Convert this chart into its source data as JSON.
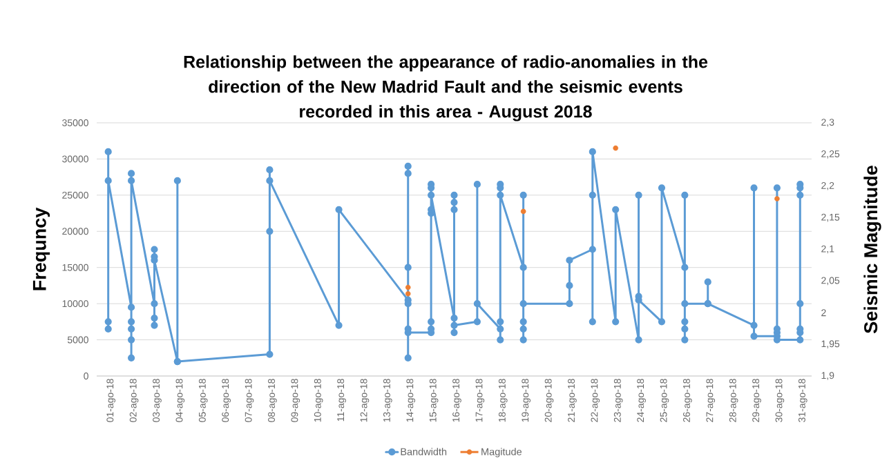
{
  "chart_data": {
    "type": "line",
    "title": "Relationship between the appearance of radio-anomalies in the direction of the New Madrid Fault and the seismic events recorded in this area - August 2018",
    "ylabel": "Frequncy",
    "y2label": "Seismic Magnitude",
    "series": [
      {
        "name": "Bandwidth",
        "color": "#5b9bd5",
        "x": [
          "2018-08-01",
          "2018-08-01",
          "2018-08-01",
          "2018-08-01",
          "2018-08-02",
          "2018-08-02",
          "2018-08-02",
          "2018-08-02",
          "2018-08-02",
          "2018-08-02",
          "2018-08-02",
          "2018-08-03",
          "2018-08-03",
          "2018-08-03",
          "2018-08-03",
          "2018-08-03",
          "2018-08-03",
          "2018-08-04",
          "2018-08-04",
          "2018-08-04",
          "2018-08-08",
          "2018-08-08",
          "2018-08-08",
          "2018-08-08",
          "2018-08-11",
          "2018-08-11",
          "2018-08-14",
          "2018-08-14",
          "2018-08-14",
          "2018-08-14",
          "2018-08-14",
          "2018-08-14",
          "2018-08-14",
          "2018-08-14",
          "2018-08-15",
          "2018-08-15",
          "2018-08-15",
          "2018-08-15",
          "2018-08-15",
          "2018-08-15",
          "2018-08-15",
          "2018-08-15",
          "2018-08-16",
          "2018-08-16",
          "2018-08-16",
          "2018-08-16",
          "2018-08-16",
          "2018-08-16",
          "2018-08-17",
          "2018-08-17",
          "2018-08-17",
          "2018-08-18",
          "2018-08-18",
          "2018-08-18",
          "2018-08-18",
          "2018-08-18",
          "2018-08-18",
          "2018-08-19",
          "2018-08-19",
          "2018-08-19",
          "2018-08-19",
          "2018-08-19",
          "2018-08-19",
          "2018-08-21",
          "2018-08-21",
          "2018-08-21",
          "2018-08-22",
          "2018-08-22",
          "2018-08-22",
          "2018-08-22",
          "2018-08-23",
          "2018-08-23",
          "2018-08-24",
          "2018-08-24",
          "2018-08-24",
          "2018-08-24",
          "2018-08-25",
          "2018-08-25",
          "2018-08-26",
          "2018-08-26",
          "2018-08-26",
          "2018-08-26",
          "2018-08-26",
          "2018-08-26",
          "2018-08-27",
          "2018-08-27",
          "2018-08-27",
          "2018-08-29",
          "2018-08-29",
          "2018-08-29",
          "2018-08-30",
          "2018-08-30",
          "2018-08-30",
          "2018-08-30",
          "2018-08-30",
          "2018-08-31",
          "2018-08-31",
          "2018-08-31",
          "2018-08-31",
          "2018-08-31",
          "2018-08-31",
          "2018-08-31"
        ],
        "values": [
          6500,
          7500,
          31000,
          27000,
          9500,
          7500,
          6500,
          5000,
          2500,
          28000,
          27000,
          10000,
          8000,
          7000,
          17500,
          16500,
          16000,
          2000,
          27000,
          2000,
          3000,
          20000,
          28500,
          27000,
          7000,
          23000,
          10500,
          15000,
          29000,
          28000,
          10000,
          2500,
          6500,
          6000,
          6000,
          6500,
          7500,
          22500,
          23000,
          26500,
          26000,
          25000,
          8000,
          6000,
          23000,
          24000,
          25000,
          7000,
          7500,
          26500,
          10000,
          6500,
          5000,
          7500,
          26500,
          26000,
          25000,
          15000,
          25000,
          5000,
          6500,
          7500,
          10000,
          10000,
          12500,
          16000,
          17500,
          7500,
          25000,
          31000,
          7500,
          23000,
          5000,
          25000,
          11000,
          10500,
          7500,
          26000,
          15000,
          25000,
          5000,
          6500,
          7500,
          10000,
          10000,
          13000,
          10000,
          7000,
          26000,
          5500,
          5500,
          26000,
          6500,
          6000,
          5000,
          5000,
          6000,
          6500,
          10000,
          25000,
          26000,
          26500
        ]
      },
      {
        "name": "Magitude",
        "type": "scatter",
        "axis": "y2",
        "color": "#ed7d31",
        "x": [
          "2018-08-14",
          "2018-08-14",
          "2018-08-19",
          "2018-08-23",
          "2018-08-30"
        ],
        "values": [
          2.04,
          2.03,
          2.16,
          2.26,
          2.18
        ]
      }
    ],
    "xlim": [
      "2018-07-31T12:00",
      "2018-08-31T12:00"
    ],
    "xticks": [
      {
        "value": "2018-08-01",
        "label": "01-ago-18"
      },
      {
        "value": "2018-08-02",
        "label": "02-ago-18"
      },
      {
        "value": "2018-08-03",
        "label": "03-ago-18"
      },
      {
        "value": "2018-08-04",
        "label": "04-ago-18"
      },
      {
        "value": "2018-08-05",
        "label": "05-ago-18"
      },
      {
        "value": "2018-08-06",
        "label": "06-ago-18"
      },
      {
        "value": "2018-08-07",
        "label": "07-ago-18"
      },
      {
        "value": "2018-08-08",
        "label": "08-ago-18"
      },
      {
        "value": "2018-08-09",
        "label": "09-ago-18"
      },
      {
        "value": "2018-08-10",
        "label": "10-ago-18"
      },
      {
        "value": "2018-08-11",
        "label": "11-ago-18"
      },
      {
        "value": "2018-08-12",
        "label": "12-ago-18"
      },
      {
        "value": "2018-08-13",
        "label": "13-ago-18"
      },
      {
        "value": "2018-08-14",
        "label": "14-ago-18"
      },
      {
        "value": "2018-08-15",
        "label": "15-ago-18"
      },
      {
        "value": "2018-08-16",
        "label": "16-ago-18"
      },
      {
        "value": "2018-08-17",
        "label": "17-ago-18"
      },
      {
        "value": "2018-08-18",
        "label": "18-ago-18"
      },
      {
        "value": "2018-08-19",
        "label": "19-ago-18"
      },
      {
        "value": "2018-08-20",
        "label": "20-ago-18"
      },
      {
        "value": "2018-08-21",
        "label": "21-ago-18"
      },
      {
        "value": "2018-08-22",
        "label": "22-ago-18"
      },
      {
        "value": "2018-08-23",
        "label": "23-ago-18"
      },
      {
        "value": "2018-08-24",
        "label": "24-ago-18"
      },
      {
        "value": "2018-08-25",
        "label": "25-ago-18"
      },
      {
        "value": "2018-08-26",
        "label": "26-ago-18"
      },
      {
        "value": "2018-08-27",
        "label": "27-ago-18"
      },
      {
        "value": "2018-08-28",
        "label": "28-ago-18"
      },
      {
        "value": "2018-08-29",
        "label": "29-ago-18"
      },
      {
        "value": "2018-08-30",
        "label": "30-ago-18"
      },
      {
        "value": "2018-08-31",
        "label": "31-ago-18"
      }
    ],
    "ylim": [
      0,
      35000
    ],
    "yticks": [
      0,
      5000,
      10000,
      15000,
      20000,
      25000,
      30000,
      35000
    ],
    "y2lim": [
      1.9,
      2.3
    ],
    "y2ticks": [
      {
        "value": 1.9,
        "label": "1,9"
      },
      {
        "value": 1.95,
        "label": "1,95"
      },
      2,
      {
        "value": 2.05,
        "label": "2,05"
      },
      {
        "value": 2.1,
        "label": "2,1"
      },
      {
        "value": 2.15,
        "label": "2,15"
      },
      {
        "value": 2.2,
        "label": "2,2"
      },
      {
        "value": 2.25,
        "label": "2,25"
      },
      {
        "value": 2.3,
        "label": "2,3"
      }
    ],
    "grid": "y",
    "legend": "bottom",
    "marker": "circle",
    "line_style": "solid"
  }
}
